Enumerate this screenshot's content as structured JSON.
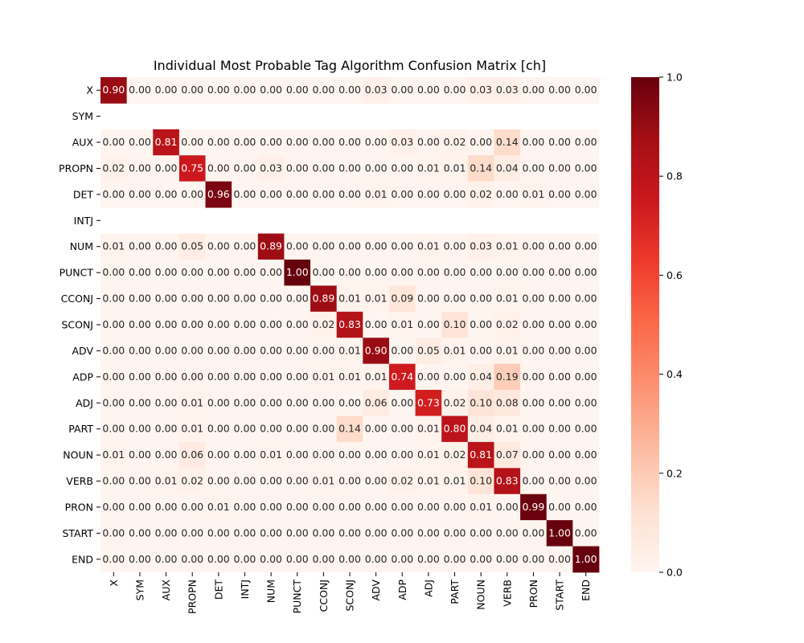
{
  "chart_data": {
    "type": "heatmap",
    "title": "Individual Most Probable Tag Algorithm Confusion Matrix [ch]",
    "xlabel": "",
    "ylabel": "",
    "row_labels": [
      "X",
      "SYM",
      "AUX",
      "PROPN",
      "DET",
      "INTJ",
      "NUM",
      "PUNCT",
      "CCONJ",
      "SCONJ",
      "ADV",
      "ADP",
      "ADJ",
      "PART",
      "NOUN",
      "VERB",
      "PRON",
      "START",
      "END"
    ],
    "col_labels": [
      "X",
      "SYM",
      "AUX",
      "PROPN",
      "DET",
      "INTJ",
      "NUM",
      "PUNCT",
      "CCONJ",
      "SCONJ",
      "ADV",
      "ADP",
      "ADJ",
      "PART",
      "NOUN",
      "VERB",
      "PRON",
      "START",
      "END"
    ],
    "values": [
      [
        0.9,
        0.0,
        0.0,
        0.0,
        0.0,
        0.0,
        0.0,
        0.0,
        0.0,
        0.0,
        0.03,
        0.0,
        0.0,
        0.0,
        0.03,
        0.03,
        0.0,
        0.0,
        0.0
      ],
      [
        null,
        null,
        null,
        null,
        null,
        null,
        null,
        null,
        null,
        null,
        null,
        null,
        null,
        null,
        null,
        null,
        null,
        null,
        null
      ],
      [
        0.0,
        0.0,
        0.81,
        0.0,
        0.0,
        0.0,
        0.0,
        0.0,
        0.0,
        0.0,
        0.0,
        0.03,
        0.0,
        0.02,
        0.0,
        0.14,
        0.0,
        0.0,
        0.0
      ],
      [
        0.02,
        0.0,
        0.0,
        0.75,
        0.0,
        0.0,
        0.03,
        0.0,
        0.0,
        0.0,
        0.0,
        0.0,
        0.01,
        0.01,
        0.14,
        0.04,
        0.0,
        0.0,
        0.0
      ],
      [
        0.0,
        0.0,
        0.0,
        0.0,
        0.96,
        0.0,
        0.0,
        0.0,
        0.0,
        0.0,
        0.01,
        0.0,
        0.0,
        0.0,
        0.02,
        0.0,
        0.01,
        0.0,
        0.0
      ],
      [
        null,
        null,
        null,
        null,
        null,
        null,
        null,
        null,
        null,
        null,
        null,
        null,
        null,
        null,
        null,
        null,
        null,
        null,
        null
      ],
      [
        0.01,
        0.0,
        0.0,
        0.05,
        0.0,
        0.0,
        0.89,
        0.0,
        0.0,
        0.0,
        0.0,
        0.0,
        0.01,
        0.0,
        0.03,
        0.01,
        0.0,
        0.0,
        0.0
      ],
      [
        0.0,
        0.0,
        0.0,
        0.0,
        0.0,
        0.0,
        0.0,
        1.0,
        0.0,
        0.0,
        0.0,
        0.0,
        0.0,
        0.0,
        0.0,
        0.0,
        0.0,
        0.0,
        0.0
      ],
      [
        0.0,
        0.0,
        0.0,
        0.0,
        0.0,
        0.0,
        0.0,
        0.0,
        0.89,
        0.01,
        0.01,
        0.09,
        0.0,
        0.0,
        0.0,
        0.01,
        0.0,
        0.0,
        0.0
      ],
      [
        0.0,
        0.0,
        0.0,
        0.0,
        0.0,
        0.0,
        0.0,
        0.0,
        0.02,
        0.83,
        0.0,
        0.01,
        0.0,
        0.1,
        0.0,
        0.02,
        0.0,
        0.0,
        0.0
      ],
      [
        0.0,
        0.0,
        0.0,
        0.0,
        0.0,
        0.0,
        0.0,
        0.0,
        0.0,
        0.01,
        0.9,
        0.0,
        0.05,
        0.01,
        0.0,
        0.01,
        0.0,
        0.0,
        0.0
      ],
      [
        0.0,
        0.0,
        0.0,
        0.0,
        0.0,
        0.0,
        0.0,
        0.0,
        0.01,
        0.01,
        0.01,
        0.74,
        0.0,
        0.0,
        0.04,
        0.19,
        0.0,
        0.0,
        0.0
      ],
      [
        0.0,
        0.0,
        0.0,
        0.01,
        0.0,
        0.0,
        0.0,
        0.0,
        0.0,
        0.0,
        0.06,
        0.0,
        0.73,
        0.02,
        0.1,
        0.08,
        0.0,
        0.0,
        0.0
      ],
      [
        0.0,
        0.0,
        0.0,
        0.01,
        0.0,
        0.0,
        0.0,
        0.0,
        0.0,
        0.14,
        0.0,
        0.0,
        0.01,
        0.8,
        0.04,
        0.01,
        0.0,
        0.0,
        0.0
      ],
      [
        0.01,
        0.0,
        0.0,
        0.06,
        0.0,
        0.0,
        0.01,
        0.0,
        0.0,
        0.0,
        0.0,
        0.0,
        0.01,
        0.02,
        0.81,
        0.07,
        0.0,
        0.0,
        0.0
      ],
      [
        0.0,
        0.0,
        0.01,
        0.02,
        0.0,
        0.0,
        0.0,
        0.0,
        0.01,
        0.0,
        0.0,
        0.02,
        0.01,
        0.01,
        0.1,
        0.83,
        0.0,
        0.0,
        0.0
      ],
      [
        0.0,
        0.0,
        0.0,
        0.0,
        0.01,
        0.0,
        0.0,
        0.0,
        0.0,
        0.0,
        0.0,
        0.0,
        0.0,
        0.0,
        0.01,
        0.0,
        0.99,
        0.0,
        0.0
      ],
      [
        0.0,
        0.0,
        0.0,
        0.0,
        0.0,
        0.0,
        0.0,
        0.0,
        0.0,
        0.0,
        0.0,
        0.0,
        0.0,
        0.0,
        0.0,
        0.0,
        0.0,
        1.0,
        0.0
      ],
      [
        0.0,
        0.0,
        0.0,
        0.0,
        0.0,
        0.0,
        0.0,
        0.0,
        0.0,
        0.0,
        0.0,
        0.0,
        0.0,
        0.0,
        0.0,
        0.0,
        0.0,
        0.0,
        1.0
      ]
    ],
    "value_format": "2 decimals",
    "colormap": "Reds",
    "vmin": 0.0,
    "vmax": 1.0,
    "colorbar": {
      "ticks": [
        0.0,
        0.2,
        0.4,
        0.6,
        0.8,
        1.0
      ],
      "tick_labels": [
        "0.0",
        "0.2",
        "0.4",
        "0.6",
        "0.8",
        "1.0"
      ],
      "placement": "right"
    },
    "grid": false
  }
}
